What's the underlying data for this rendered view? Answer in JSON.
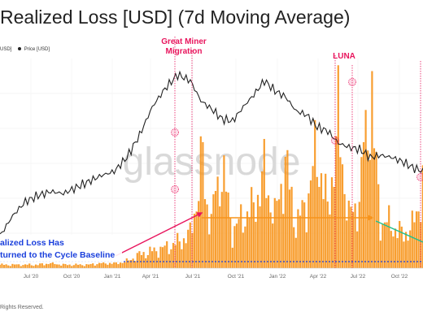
{
  "title": "Realized Loss [USD] (7d Moving Average)",
  "legend": {
    "series_a": "USD]",
    "series_b": "Price [USD]"
  },
  "footer": "Rights Reserved.",
  "watermark": "glassnode",
  "colors": {
    "loss": "#f7931a",
    "price": "#222222",
    "annotation": "#e8155d",
    "baseline": "#1a3fdc",
    "arrow_red": "#e8155d",
    "arrow_orange": "#f7931a",
    "arrow_green": "#1fbf8f"
  },
  "chart_data": {
    "type": "line",
    "x_ticks": [
      "Jul '20",
      "Oct '20",
      "Jan '21",
      "Apr '21",
      "Jul '21",
      "Oct '21",
      "Jan '22",
      "Apr '22",
      "Jul '22",
      "Oct '22"
    ],
    "grid": true,
    "price": {
      "name": "Price [USD]",
      "axis_scale": "log",
      "index": [
        0,
        6,
        12,
        18,
        24,
        30,
        36,
        42,
        48,
        54,
        60,
        66,
        72,
        78,
        84,
        90,
        95,
        100,
        105,
        110,
        115,
        120,
        125,
        130,
        135,
        140,
        145,
        150,
        155,
        160,
        165,
        170,
        175,
        180,
        185,
        190,
        195,
        200
      ],
      "relative_level": [
        0.16,
        0.26,
        0.33,
        0.36,
        0.38,
        0.37,
        0.4,
        0.43,
        0.46,
        0.48,
        0.55,
        0.66,
        0.8,
        0.89,
        0.96,
        0.93,
        0.83,
        0.79,
        0.74,
        0.73,
        0.8,
        0.86,
        0.93,
        0.88,
        0.85,
        0.78,
        0.76,
        0.7,
        0.68,
        0.62,
        0.6,
        0.59,
        0.55,
        0.56,
        0.55,
        0.53,
        0.5,
        0.48
      ]
    },
    "realized_loss": {
      "name": "Realized Loss",
      "relative_level": [
        0.02,
        0.02,
        0.02,
        0.02,
        0.03,
        0.02,
        0.02,
        0.02,
        0.03,
        0.03,
        0.04,
        0.08,
        0.1,
        0.12,
        0.15,
        0.2,
        0.55,
        0.28,
        0.6,
        0.22,
        0.3,
        0.36,
        0.55,
        0.3,
        0.62,
        0.26,
        0.38,
        0.7,
        0.34,
        0.85,
        0.3,
        0.4,
        1.0,
        0.28,
        0.26,
        0.2,
        0.24,
        0.48
      ]
    },
    "annotations": [
      {
        "label_line1": "Great Miner",
        "label_line2": "Migration"
      },
      {
        "label_line1": "LUNA",
        "label_line2": ""
      }
    ],
    "callouts": {
      "baseline_line1": "alized Loss Has",
      "baseline_line2": "turned to the Cycle Baseline"
    }
  }
}
